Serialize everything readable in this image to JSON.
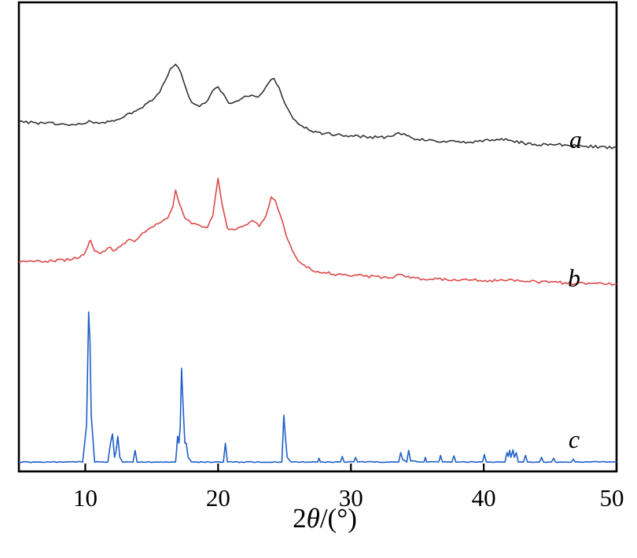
{
  "chart_data": {
    "type": "line",
    "title": "",
    "xlabel_prefix": "2",
    "xlabel_theta": "θ",
    "xlabel_suffix": "/(°)",
    "ylabel": "",
    "xlim": [
      5,
      50
    ],
    "xticks": [
      10,
      20,
      30,
      40,
      50
    ],
    "grid": false,
    "legend": "none",
    "series": [
      {
        "label": "a",
        "color": "#333333",
        "x": [
          5,
          7,
          9,
          10,
          10.3,
          11,
          12,
          13,
          14,
          15,
          15.6,
          16,
          16.4,
          16.8,
          17.2,
          17.6,
          18,
          18.6,
          19.2,
          19.6,
          20,
          20.4,
          20.8,
          21.5,
          22,
          22.5,
          23,
          23.4,
          23.8,
          24.2,
          24.6,
          25,
          25.5,
          26,
          27,
          28,
          30,
          32,
          33,
          33.6,
          34.2,
          35,
          37,
          39,
          41,
          42,
          43,
          44,
          45,
          47,
          50
        ],
        "y": [
          0.745,
          0.742,
          0.74,
          0.742,
          0.748,
          0.742,
          0.748,
          0.758,
          0.772,
          0.79,
          0.808,
          0.832,
          0.858,
          0.868,
          0.85,
          0.815,
          0.787,
          0.778,
          0.79,
          0.812,
          0.82,
          0.805,
          0.785,
          0.79,
          0.8,
          0.802,
          0.798,
          0.81,
          0.828,
          0.838,
          0.818,
          0.786,
          0.76,
          0.742,
          0.726,
          0.72,
          0.716,
          0.712,
          0.714,
          0.722,
          0.716,
          0.708,
          0.704,
          0.702,
          0.708,
          0.706,
          0.7,
          0.695,
          0.698,
          0.694,
          0.69
        ]
      },
      {
        "label": "b",
        "color": "#dd4848",
        "x": [
          5,
          7,
          9,
          9.9,
          10.2,
          10.4,
          10.7,
          11,
          11.5,
          11.9,
          12.1,
          12.5,
          13,
          13.3,
          13.7,
          14.5,
          15.5,
          16.2,
          16.6,
          16.8,
          17.1,
          17.5,
          18,
          18.6,
          19.2,
          19.6,
          20,
          20.3,
          20.7,
          21.2,
          22,
          22.6,
          23.1,
          23.6,
          24,
          24.3,
          24.7,
          25.1,
          25.6,
          26,
          27,
          28,
          29,
          31,
          33,
          33.8,
          34.5,
          36,
          39,
          41,
          42,
          44,
          47,
          50
        ],
        "y": [
          0.446,
          0.448,
          0.452,
          0.462,
          0.48,
          0.493,
          0.47,
          0.466,
          0.47,
          0.478,
          0.47,
          0.478,
          0.486,
          0.495,
          0.49,
          0.51,
          0.528,
          0.54,
          0.565,
          0.6,
          0.57,
          0.54,
          0.528,
          0.525,
          0.52,
          0.545,
          0.625,
          0.57,
          0.518,
          0.515,
          0.525,
          0.535,
          0.522,
          0.545,
          0.585,
          0.578,
          0.545,
          0.505,
          0.47,
          0.45,
          0.43,
          0.424,
          0.42,
          0.416,
          0.413,
          0.42,
          0.412,
          0.41,
          0.408,
          0.406,
          0.41,
          0.404,
          0.401,
          0.4
        ]
      },
      {
        "label": "c",
        "color": "#1f5fc8",
        "x": [
          5,
          9.8,
          10.1,
          10.25,
          10.35,
          10.45,
          10.7,
          11.7,
          11.9,
          12.05,
          12.2,
          12.3,
          12.45,
          12.6,
          12.8,
          13.6,
          13.75,
          13.9,
          16.8,
          16.95,
          17.05,
          17.15,
          17.25,
          17.35,
          17.5,
          17.6,
          17.75,
          18,
          20.4,
          20.55,
          20.7,
          24.8,
          24.95,
          25.05,
          25.2,
          25.5,
          27.5,
          27.6,
          27.7,
          29.2,
          29.35,
          29.5,
          30.2,
          30.35,
          30.5,
          33.6,
          33.75,
          33.9,
          34.2,
          34.35,
          34.5,
          35.5,
          35.6,
          35.7,
          36.6,
          36.75,
          36.9,
          37.6,
          37.75,
          37.9,
          39.9,
          40.05,
          40.2,
          41.6,
          41.75,
          41.85,
          41.95,
          42.05,
          42.2,
          42.3,
          42.45,
          42.6,
          43,
          43.15,
          43.3,
          44.2,
          44.35,
          44.5,
          45.1,
          45.25,
          45.4,
          46.6,
          46.75,
          46.9,
          50
        ],
        "y": [
          0.02,
          0.02,
          0.1,
          0.34,
          0.28,
          0.12,
          0.02,
          0.02,
          0.06,
          0.08,
          0.03,
          0.04,
          0.075,
          0.03,
          0.02,
          0.02,
          0.045,
          0.02,
          0.02,
          0.075,
          0.06,
          0.095,
          0.22,
          0.15,
          0.06,
          0.06,
          0.03,
          0.02,
          0.02,
          0.06,
          0.02,
          0.02,
          0.12,
          0.08,
          0.03,
          0.02,
          0.02,
          0.028,
          0.02,
          0.02,
          0.032,
          0.02,
          0.02,
          0.03,
          0.02,
          0.02,
          0.04,
          0.025,
          0.02,
          0.045,
          0.022,
          0.02,
          0.03,
          0.02,
          0.02,
          0.034,
          0.02,
          0.02,
          0.033,
          0.02,
          0.02,
          0.036,
          0.02,
          0.02,
          0.04,
          0.032,
          0.045,
          0.03,
          0.046,
          0.03,
          0.04,
          0.02,
          0.02,
          0.034,
          0.02,
          0.02,
          0.03,
          0.02,
          0.02,
          0.028,
          0.02,
          0.02,
          0.026,
          0.02,
          0.02
        ]
      }
    ]
  }
}
